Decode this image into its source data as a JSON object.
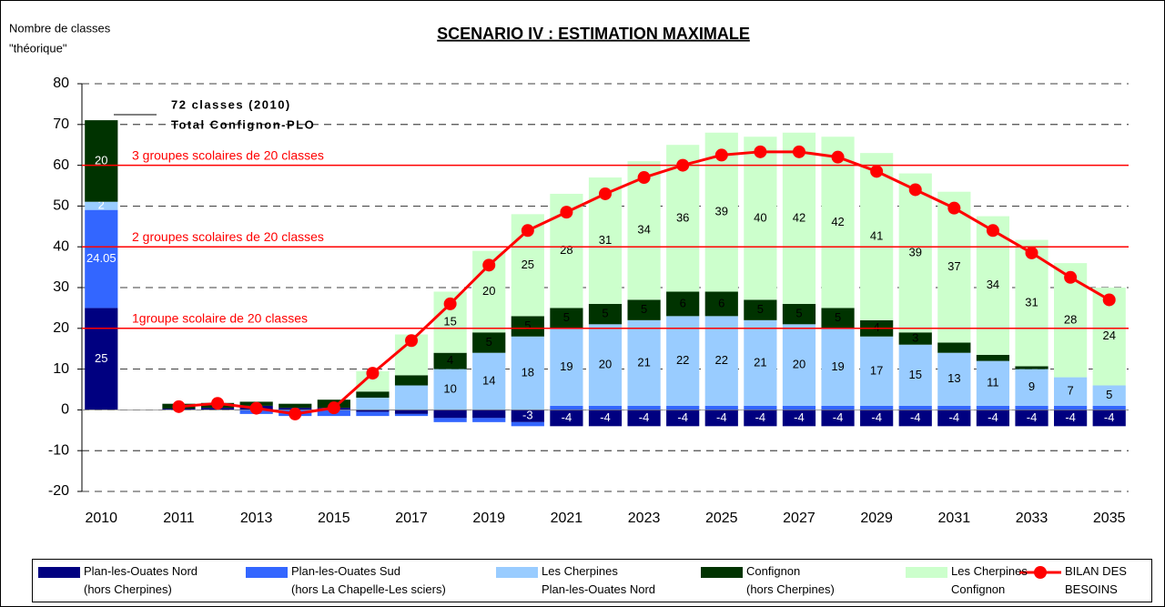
{
  "chart_data": {
    "type": "bar",
    "stacked": true,
    "title": "SCENARIO IV : ESTIMATION MAXIMALE",
    "y_label": [
      "Nombre de classes",
      "\"théorique\""
    ],
    "categories": [
      "2010",
      null,
      "2011",
      null,
      "2013",
      null,
      "2015",
      null,
      "2017",
      null,
      "2019",
      null,
      "2021",
      null,
      "2023",
      null,
      "2025",
      null,
      "2027",
      null,
      "2029",
      null,
      "2031",
      null,
      "2033",
      null,
      "2035"
    ],
    "ylim": [
      -20,
      80
    ],
    "yticks": [
      -20,
      -10,
      0,
      10,
      20,
      30,
      40,
      50,
      60,
      70,
      80
    ],
    "grid": true,
    "series": [
      {
        "name": "Plan-les-Ouates Nord\n(hors Cherpines)",
        "color": "#000080",
        "type": "bar",
        "values": [
          25,
          null,
          0.3,
          0.5,
          1,
          0.5,
          0.5,
          -0.5,
          -1,
          -2,
          -2,
          -3,
          -4,
          -4,
          -4,
          -4,
          -4,
          -4,
          -4,
          -4,
          -4,
          -4,
          -4,
          -4,
          -4,
          -4,
          -4
        ],
        "value_labels": [
          "25",
          null,
          null,
          null,
          null,
          null,
          null,
          null,
          null,
          null,
          null,
          "-3",
          "-4",
          "-4",
          "-4",
          "-4",
          "-4",
          "-4",
          "-4",
          "-4",
          "-4",
          "-4",
          "-4",
          "-4",
          "-4",
          "-4",
          "-4"
        ]
      },
      {
        "name": "Plan-les-Ouates Sud\n(hors La Chapelle-Les sciers)",
        "color": "#3366ff",
        "type": "bar",
        "values": [
          24.05,
          null,
          0,
          0,
          -1,
          -1.5,
          -1.5,
          -1,
          -0.5,
          -1,
          -1,
          -1,
          1,
          1,
          1,
          1,
          1,
          1,
          1,
          1,
          1,
          1,
          1,
          1,
          1,
          1,
          1
        ],
        "value_labels": [
          "24.05",
          null,
          null,
          null,
          null,
          null,
          null,
          null,
          null,
          null,
          null,
          null,
          null,
          null,
          null,
          null,
          null,
          null,
          null,
          null,
          null,
          null,
          null,
          null,
          null,
          null,
          null
        ]
      },
      {
        "name": "Les Cherpines\nPlan-les-Ouates Nord",
        "color": "#99ccff",
        "type": "bar",
        "values": [
          2,
          null,
          0,
          0,
          0,
          0,
          0,
          3,
          6,
          10,
          14,
          18,
          19,
          20,
          21,
          22,
          22,
          21,
          20,
          19,
          17,
          15,
          13,
          11,
          9,
          7,
          5
        ],
        "value_labels": [
          "2",
          null,
          null,
          null,
          null,
          null,
          null,
          null,
          null,
          "10",
          "14",
          "18",
          "19",
          "20",
          "21",
          "22",
          "22",
          "21",
          "20",
          "19",
          "17",
          "15",
          "13",
          "11",
          "9",
          "7",
          "5"
        ]
      },
      {
        "name": "Confignon\n(hors Cherpines)",
        "color": "#003300",
        "type": "bar",
        "values": [
          20,
          null,
          1.2,
          1.2,
          1,
          1,
          2,
          1.5,
          2.5,
          4,
          5,
          5,
          5,
          5,
          5,
          6,
          6,
          5,
          5,
          5,
          4,
          3,
          2.5,
          1.5,
          0.7,
          0,
          0
        ],
        "value_labels": [
          "20",
          null,
          null,
          null,
          null,
          null,
          null,
          null,
          null,
          "4",
          "5",
          "5",
          "5",
          "5",
          "5",
          "6",
          "6",
          "5",
          "5",
          "5",
          "4",
          "3",
          null,
          null,
          null,
          null,
          null
        ]
      },
      {
        "name": "Les Cherpines\nConfignon",
        "color": "#ccffcc",
        "type": "bar",
        "values": [
          null,
          null,
          0,
          0,
          0,
          0,
          0,
          5,
          10,
          15,
          20,
          25,
          28,
          31,
          34,
          36,
          39,
          40,
          42,
          42,
          41,
          39,
          37,
          34,
          31,
          28,
          24
        ],
        "value_labels": [
          null,
          null,
          null,
          null,
          null,
          null,
          null,
          null,
          null,
          "15",
          "20",
          "25",
          "28",
          "31",
          "34",
          "36",
          "39",
          "40",
          "42",
          "42",
          "41",
          "39",
          "37",
          "34",
          "31",
          "28",
          "24"
        ]
      },
      {
        "name": "BILAN DES\nBESOINS",
        "color": "#ff0000",
        "type": "line",
        "values": [
          null,
          null,
          0.8,
          1.6,
          0.4,
          -1,
          0.5,
          9,
          17,
          26,
          35.5,
          44,
          48.5,
          53,
          57,
          60,
          62.5,
          63.3,
          63.3,
          62,
          58.5,
          54,
          49.5,
          44,
          38.5,
          32.5,
          27
        ]
      }
    ],
    "reference_lines": [
      {
        "value": 60,
        "label": "3 groupes scolaires de 20 classes"
      },
      {
        "value": 40,
        "label": "2 groupes scolaires de 20 classes"
      },
      {
        "value": 20,
        "label": "1groupe scolaire de 20 classes"
      }
    ],
    "annotation": [
      "72 classes (2010)",
      "Total Confignon-PLO"
    ]
  }
}
